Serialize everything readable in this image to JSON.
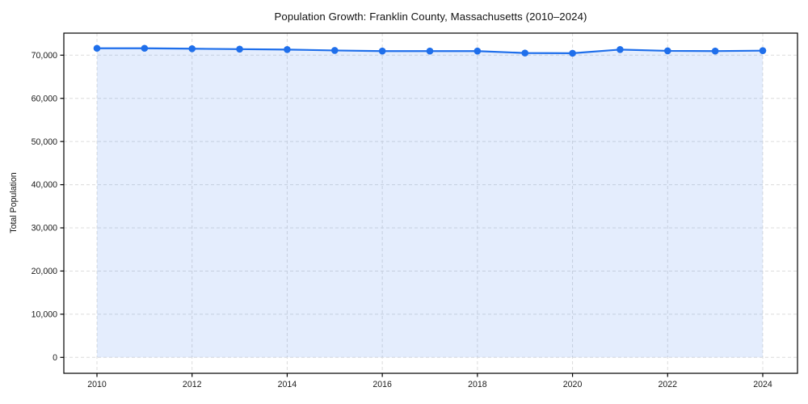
{
  "chart_data": {
    "type": "area",
    "title": "Population Growth: Franklin County, Massachusetts (2010–2024)",
    "xlabel": "",
    "ylabel": "Total Population",
    "series_name": "Total Population",
    "x": [
      2010,
      2011,
      2012,
      2013,
      2014,
      2015,
      2016,
      2017,
      2018,
      2019,
      2020,
      2021,
      2022,
      2023,
      2024
    ],
    "values": [
      71600,
      71600,
      71500,
      71400,
      71300,
      71100,
      70950,
      70950,
      70950,
      70500,
      70450,
      71300,
      71000,
      70950,
      71050
    ],
    "ylim": [
      0,
      75000
    ],
    "yticks": [
      0,
      10000,
      20000,
      30000,
      40000,
      50000,
      60000,
      70000
    ],
    "ytick_labels": [
      "0",
      "10,000",
      "20,000",
      "30,000",
      "40,000",
      "50,000",
      "60,000",
      "70,000"
    ],
    "xticks": [
      2010,
      2012,
      2014,
      2016,
      2018,
      2020,
      2022,
      2024
    ],
    "xtick_labels": [
      "2010",
      "2012",
      "2014",
      "2016",
      "2018",
      "2020",
      "2022",
      "2024"
    ],
    "grid": true,
    "grid_style": "dashed",
    "legend": "none",
    "marker": "circle",
    "colors": {
      "line": "#1f6feb",
      "marker": "#1f6feb",
      "fill": "rgba(31, 111, 235, 0.12)",
      "grid": "#dcdcdc",
      "spine": "#000000",
      "text": "#1a1a1a",
      "background": "#ffffff"
    }
  }
}
